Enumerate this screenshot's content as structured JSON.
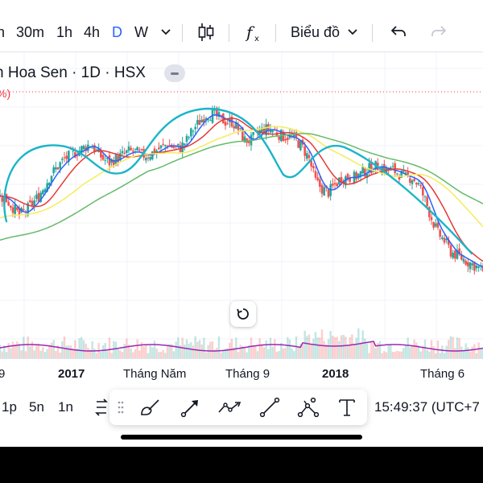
{
  "toolbar": {
    "timeframes": [
      {
        "label": "n"
      },
      {
        "label": "30m"
      },
      {
        "label": "1h"
      },
      {
        "label": "4h"
      },
      {
        "label": "D",
        "active": true
      },
      {
        "label": "W"
      }
    ],
    "chart_type_icon": "candlestick-icon",
    "indicators_icon": "fx-icon",
    "layout_label": "Biểu đồ",
    "undo_icon": "undo-icon",
    "redo_icon": "redo-icon"
  },
  "legend": {
    "title": "n Hoa Sen · 1D · HSX",
    "sub": "%)"
  },
  "time_axis": {
    "labels": [
      {
        "text": "9",
        "bold": false
      },
      {
        "text": "2017",
        "bold": true
      },
      {
        "text": "Tháng Năm",
        "bold": false
      },
      {
        "text": "Tháng 9",
        "bold": false
      },
      {
        "text": "2018",
        "bold": true
      },
      {
        "text": "Tháng 6",
        "bold": false
      }
    ]
  },
  "bottom_bar": {
    "ranges": [
      "1p",
      "5n",
      "1n"
    ],
    "time": "15:49:37 (UTC+7"
  },
  "drawing_tools": [
    "brush-icon",
    "arrow-icon",
    "path-icon",
    "trend-line-icon",
    "polyline-icon",
    "text-icon"
  ],
  "colors": {
    "up": "#26a69a",
    "down": "#ef5350",
    "ma_fast": "#2962ff",
    "ma_mid": "#e53935",
    "ma_slow": "#f5ec5b",
    "ma_long": "#66bb6a",
    "volume_ma": "#9c27b0",
    "annotation": "#1ab5c8",
    "accent": "#2962ff"
  },
  "chart_data": {
    "type": "candlestick",
    "title": "",
    "close": [
      28,
      27,
      25,
      23,
      24,
      26,
      28,
      31,
      34,
      36,
      38,
      39,
      40,
      41,
      42,
      40,
      38,
      37,
      38,
      39,
      40,
      40,
      39,
      39,
      40,
      41,
      42,
      41,
      41,
      43,
      46,
      48,
      50,
      50,
      49,
      48,
      48,
      46,
      43,
      43,
      45,
      46,
      46,
      45,
      44,
      44,
      43,
      41,
      38,
      32,
      30,
      29,
      31,
      33,
      33,
      33,
      34,
      35,
      36,
      36,
      35,
      35,
      34,
      33,
      33,
      31,
      27,
      22,
      18,
      16,
      13,
      12,
      11,
      10,
      9,
      8
    ],
    "annotation_shape": "three-arc outline (head and shoulders)"
  }
}
